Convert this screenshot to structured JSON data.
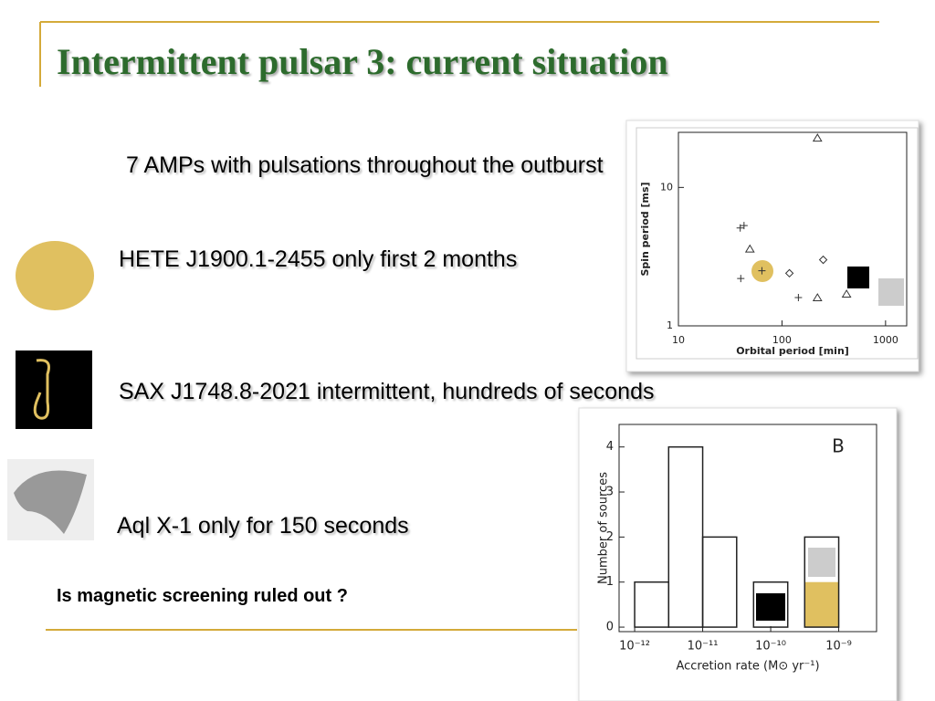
{
  "slide": {
    "title": "Intermittent pulsar 3: current situation",
    "intro": "7 AMPs with pulsations throughout the outburst",
    "items": [
      "HETE J1900.1-2455 only first 2 months",
      "SAX J1748.8-2021 intermittent, hundreds of seconds",
      "Aql X-1 only for 150 seconds"
    ],
    "question": "Is magnetic screening ruled out ?"
  },
  "chart_data": [
    {
      "type": "scatter",
      "xlabel": "Orbital period [min]",
      "ylabel": "Spin period [ms]",
      "x": [
        220,
        39.5,
        43,
        49,
        64,
        118,
        250,
        40,
        144,
        220,
        420
      ],
      "values": [
        22.8,
        5.1,
        5.3,
        3.6,
        2.5,
        2.4,
        3.0,
        2.2,
        1.6,
        1.6,
        1.7
      ],
      "markers": [
        "triangle",
        "plus",
        "plus",
        "triangle",
        "plus",
        "diamond",
        "diamond",
        "plus",
        "plus",
        "triangle",
        "triangle"
      ],
      "color": "#333333",
      "xlog": true,
      "ylog": true,
      "xlim": [
        10,
        1600
      ],
      "ylim": [
        1,
        25
      ],
      "xticks": [
        10,
        100,
        1000
      ],
      "yticks": [
        1,
        10
      ]
    },
    {
      "type": "histogram",
      "annotation": "B",
      "xlabel": "Accretion rate (M⊙ yr⁻¹)",
      "ylabel": "Number of sources",
      "bins": [
        1e-12,
        3.16e-12,
        1e-11,
        3.16e-11,
        5.6e-11,
        1.78e-10,
        3.16e-10,
        1e-09
      ],
      "values": [
        1,
        4,
        2,
        0,
        1,
        0,
        2
      ],
      "filled_values": [
        0,
        0,
        0,
        0,
        0,
        0,
        1
      ],
      "fill_color": "#e0c060",
      "color": "#222222",
      "xlog": true,
      "xlim": [
        5.9e-13,
        3.6e-09
      ],
      "ylim": [
        -0.1,
        4.5
      ],
      "xticks": [
        {
          "value": 1e-12,
          "label": "10⁻¹²"
        },
        {
          "value": 1e-11,
          "label": "10⁻¹¹"
        },
        {
          "value": 1e-10,
          "label": "10⁻¹⁰"
        },
        {
          "value": 1e-09,
          "label": "10⁻⁹"
        }
      ],
      "yticks": [
        0,
        1,
        2,
        3,
        4
      ]
    }
  ]
}
